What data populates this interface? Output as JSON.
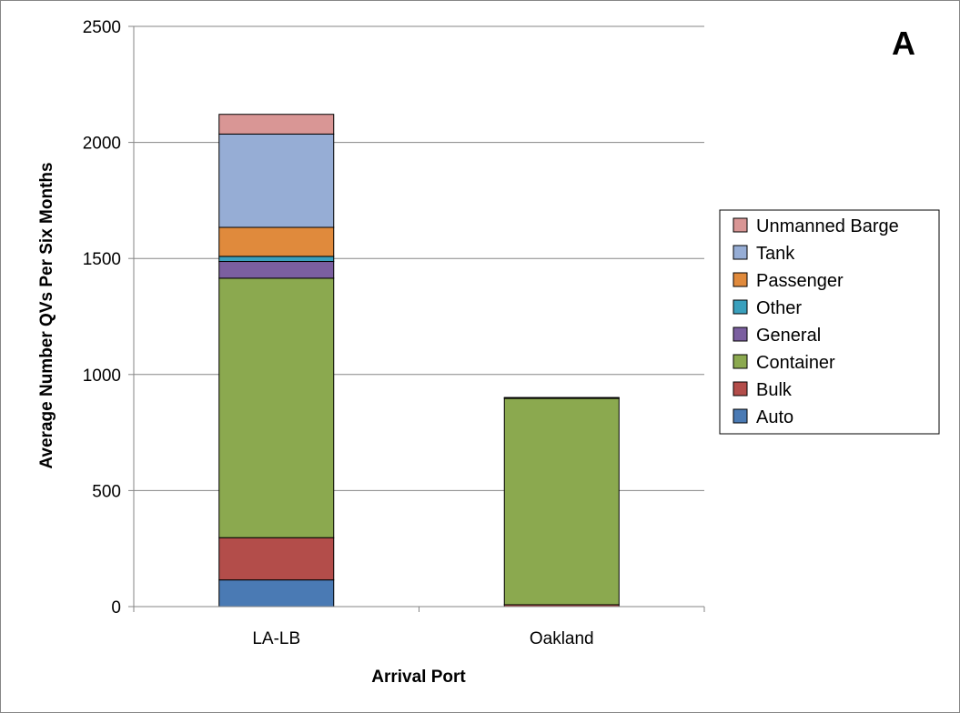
{
  "chart_data": {
    "type": "bar",
    "stacked": true,
    "panel_label": "A",
    "xlabel": "Arrival Port",
    "ylabel": "Average Number QVs Per Six Months",
    "ylim": [
      0,
      2500
    ],
    "yticks": [
      0,
      500,
      1000,
      1500,
      2000,
      2500
    ],
    "grid": "horizontal",
    "legend_position": "right",
    "categories": [
      "LA-LB",
      "Oakland"
    ],
    "series": [
      {
        "name": "Auto",
        "color": "#4a7ab4",
        "values": [
          115,
          0
        ]
      },
      {
        "name": "Bulk",
        "color": "#b34d4a",
        "values": [
          182,
          8
        ]
      },
      {
        "name": "Container",
        "color": "#8ba94f",
        "values": [
          1118,
          889
        ]
      },
      {
        "name": "General",
        "color": "#7b5fa0",
        "values": [
          72,
          2
        ]
      },
      {
        "name": "Other",
        "color": "#3aa0bd",
        "values": [
          22,
          0
        ]
      },
      {
        "name": "Passenger",
        "color": "#e08a3c",
        "values": [
          125,
          0
        ]
      },
      {
        "name": "Tank",
        "color": "#96add5",
        "values": [
          402,
          2
        ]
      },
      {
        "name": "Unmanned Barge",
        "color": "#d99695",
        "values": [
          85,
          0
        ]
      }
    ]
  }
}
